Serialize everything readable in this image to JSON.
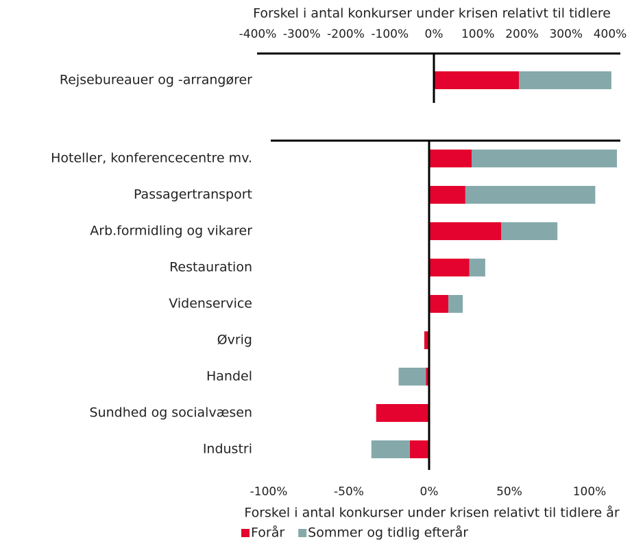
{
  "chart_data": [
    {
      "type": "bar",
      "orientation": "horizontal",
      "stacked": true,
      "xlabel": "Forskel i antal konkurser under krisen relativt til tidlere",
      "categories": [
        "Rejsebureauer og -arrangører"
      ],
      "series": [
        {
          "color": "#e4032e",
          "values": [
            193
          ]
        },
        {
          "color": "#85a9ab",
          "values": [
            210
          ]
        }
      ],
      "xlim": [
        -400,
        400
      ],
      "xticks": [
        {
          "value": -400,
          "label": "-400%"
        },
        {
          "value": -300,
          "label": "-300%"
        },
        {
          "value": -200,
          "label": "-200%"
        },
        {
          "value": -100,
          "label": "-100%"
        },
        {
          "value": 0,
          "label": "0%"
        },
        {
          "value": 100,
          "label": "100%"
        },
        {
          "value": 200,
          "label": "200%"
        },
        {
          "value": 300,
          "label": "300%"
        },
        {
          "value": 400,
          "label": "400%"
        }
      ]
    },
    {
      "type": "bar",
      "orientation": "horizontal",
      "stacked": true,
      "xlabel": "Forskel i antal konkurser under krisen relativt til tidlere år",
      "categories": [
        "Hoteller, konferencecentre mv.",
        "Passagertransport",
        "Arb.formidling og vikarer",
        "Restauration",
        "Videnservice",
        "Øvrig",
        "Handel",
        "Sundhed og socialvæsen",
        "Industri"
      ],
      "series": [
        {
          "name": "Forår",
          "color": "#e4032e",
          "values": [
            26.5,
            22.6,
            45,
            25,
            12,
            -3,
            -2,
            -33,
            -12
          ]
        },
        {
          "name": "Sommer og tidlig efterår",
          "color": "#85a9ab",
          "values": [
            90.6,
            81,
            35,
            10,
            9,
            0,
            -17,
            0,
            -24
          ]
        }
      ],
      "xlim": [
        -100,
        100
      ],
      "xticks": [
        {
          "value": -100,
          "label": "-100%"
        },
        {
          "value": -50,
          "label": "-50%"
        },
        {
          "value": 0,
          "label": "0%"
        },
        {
          "value": 50,
          "label": "50%"
        },
        {
          "value": 100,
          "label": "100%"
        }
      ],
      "legend": "bottom"
    }
  ]
}
